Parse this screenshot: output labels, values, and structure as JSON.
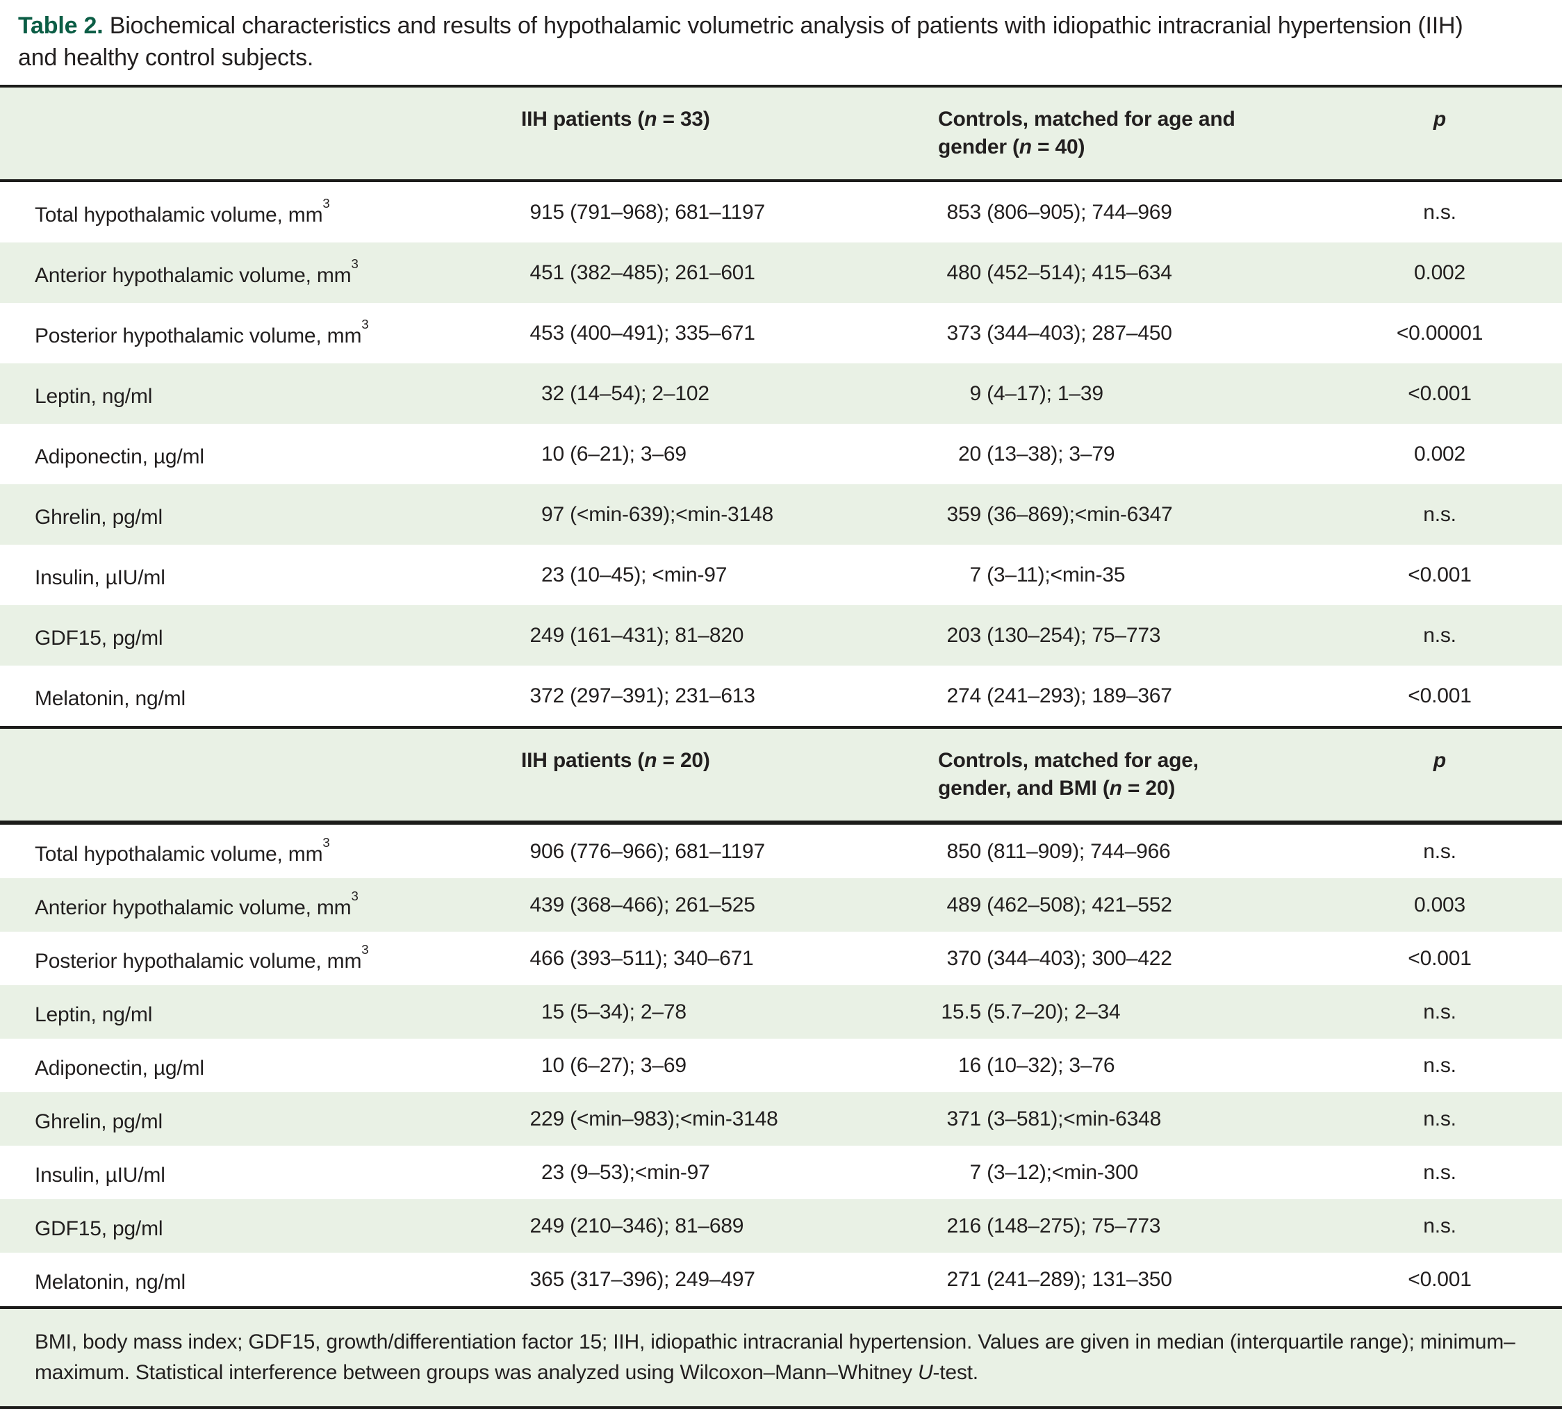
{
  "title": {
    "label": "Table 2.",
    "text": " Biochemical characteristics and results of hypothalamic volumetric analysis of patients with idiopathic intracranial hypertension (IIH) and healthy control subjects."
  },
  "colors": {
    "accent_green": "#0b5d45",
    "row_green": "#e9f1e5",
    "rule": "#1c1c1a",
    "text": "#221f1f"
  },
  "sections": [
    {
      "header": {
        "iih_pre": "IIH patients (",
        "n1": "n",
        "iih_post": " = 33)",
        "ctrl_pre": "Controls, matched for age and gender (",
        "n2": "n",
        "ctrl_post": " = 40)",
        "p": "p"
      },
      "rows": [
        {
          "label": "Total hypothalamic volume, mm",
          "sup": "3",
          "iih_num": "915",
          "iih_rest": " (791–968); 681–1197",
          "ctrl_num": "853",
          "ctrl_rest": " (806–905); 744–969",
          "p": "n.s."
        },
        {
          "label": "Anterior hypothalamic volume, mm",
          "sup": "3",
          "iih_num": "451",
          "iih_rest": " (382–485); 261–601",
          "ctrl_num": "480",
          "ctrl_rest": " (452–514); 415–634",
          "p": "0.002"
        },
        {
          "label": "Posterior hypothalamic volume, mm",
          "sup": "3",
          "iih_num": "453",
          "iih_rest": " (400–491); 335–671",
          "ctrl_num": "373",
          "ctrl_rest": " (344–403); 287–450",
          "p": "<0.00001"
        },
        {
          "label": "Leptin, ng/ml",
          "sup": "",
          "iih_num": "32",
          "iih_rest": " (14–54); 2–102",
          "ctrl_num": "9",
          "ctrl_rest": " (4–17); 1–39",
          "p": "<0.001"
        },
        {
          "label": "Adiponectin, µg/ml",
          "sup": "",
          "iih_num": "10",
          "iih_rest": " (6–21); 3–69",
          "ctrl_num": "20",
          "ctrl_rest": " (13–38); 3–79",
          "p": "0.002"
        },
        {
          "label": "Ghrelin, pg/ml",
          "sup": "",
          "iih_num": "97",
          "iih_rest": " (<min-639);<min-3148",
          "ctrl_num": "359",
          "ctrl_rest": " (36–869);<min-6347",
          "p": "n.s."
        },
        {
          "label": "Insulin, µIU/ml",
          "sup": "",
          "iih_num": "23",
          "iih_rest": " (10–45); <min-97",
          "ctrl_num": "7",
          "ctrl_rest": " (3–11);<min-35",
          "p": "<0.001"
        },
        {
          "label": "GDF15, pg/ml",
          "sup": "",
          "iih_num": "249",
          "iih_rest": " (161–431); 81–820",
          "ctrl_num": "203",
          "ctrl_rest": " (130–254); 75–773",
          "p": "n.s."
        },
        {
          "label": "Melatonin, ng/ml",
          "sup": "",
          "iih_num": "372",
          "iih_rest": " (297–391); 231–613",
          "ctrl_num": "274",
          "ctrl_rest": " (241–293); 189–367",
          "p": "<0.001"
        }
      ]
    },
    {
      "header": {
        "iih_pre": "IIH patients (",
        "n1": "n",
        "iih_post": " = 20)",
        "ctrl_pre": "Controls, matched for age, gender, and BMI (",
        "n2": "n",
        "ctrl_post": " = 20)",
        "p": "p"
      },
      "rows": [
        {
          "label": "Total hypothalamic volume, mm",
          "sup": "3",
          "iih_num": "906",
          "iih_rest": " (776–966); 681–1197",
          "ctrl_num": "850",
          "ctrl_rest": " (811–909); 744–966",
          "p": "n.s."
        },
        {
          "label": "Anterior hypothalamic volume, mm",
          "sup": "3",
          "iih_num": "439",
          "iih_rest": " (368–466); 261–525",
          "ctrl_num": "489",
          "ctrl_rest": " (462–508); 421–552",
          "p": "0.003"
        },
        {
          "label": "Posterior hypothalamic volume, mm",
          "sup": "3",
          "iih_num": "466",
          "iih_rest": " (393–511); 340–671",
          "ctrl_num": "370",
          "ctrl_rest": " (344–403); 300–422",
          "p": "<0.001"
        },
        {
          "label": "Leptin, ng/ml",
          "sup": "",
          "iih_num": "15",
          "iih_rest": " (5–34); 2–78",
          "ctrl_num": "15.5",
          "ctrl_rest": " (5.7–20); 2–34",
          "p": "n.s."
        },
        {
          "label": "Adiponectin, µg/ml",
          "sup": "",
          "iih_num": "10",
          "iih_rest": " (6–27); 3–69",
          "ctrl_num": "16",
          "ctrl_rest": " (10–32); 3–76",
          "p": "n.s."
        },
        {
          "label": "Ghrelin, pg/ml",
          "sup": "",
          "iih_num": "229",
          "iih_rest": " (<min–983);<min-3148",
          "ctrl_num": "371",
          "ctrl_rest": " (3–581);<min-6348",
          "p": "n.s."
        },
        {
          "label": "Insulin, µIU/ml",
          "sup": "",
          "iih_num": "23",
          "iih_rest": " (9–53);<min-97",
          "ctrl_num": "7",
          "ctrl_rest": " (3–12);<min-300",
          "p": "n.s."
        },
        {
          "label": "GDF15, pg/ml",
          "sup": "",
          "iih_num": "249",
          "iih_rest": " (210–346); 81–689",
          "ctrl_num": "216",
          "ctrl_rest": " (148–275); 75–773",
          "p": "n.s."
        },
        {
          "label": "Melatonin, ng/ml",
          "sup": "",
          "iih_num": "365",
          "iih_rest": " (317–396); 249–497",
          "ctrl_num": "271",
          "ctrl_rest": " (241–289); 131–350",
          "p": "<0.001"
        }
      ]
    }
  ],
  "footnote": {
    "pre": "BMI, body mass index; GDF15, growth/differentiation factor 15; IIH, idiopathic intracranial hypertension. Values are given in median (interquartile range); minimum–maximum. Statistical interference between groups was analyzed using Wilcoxon–Mann–Whitney ",
    "u": "U",
    "post": "-test."
  }
}
